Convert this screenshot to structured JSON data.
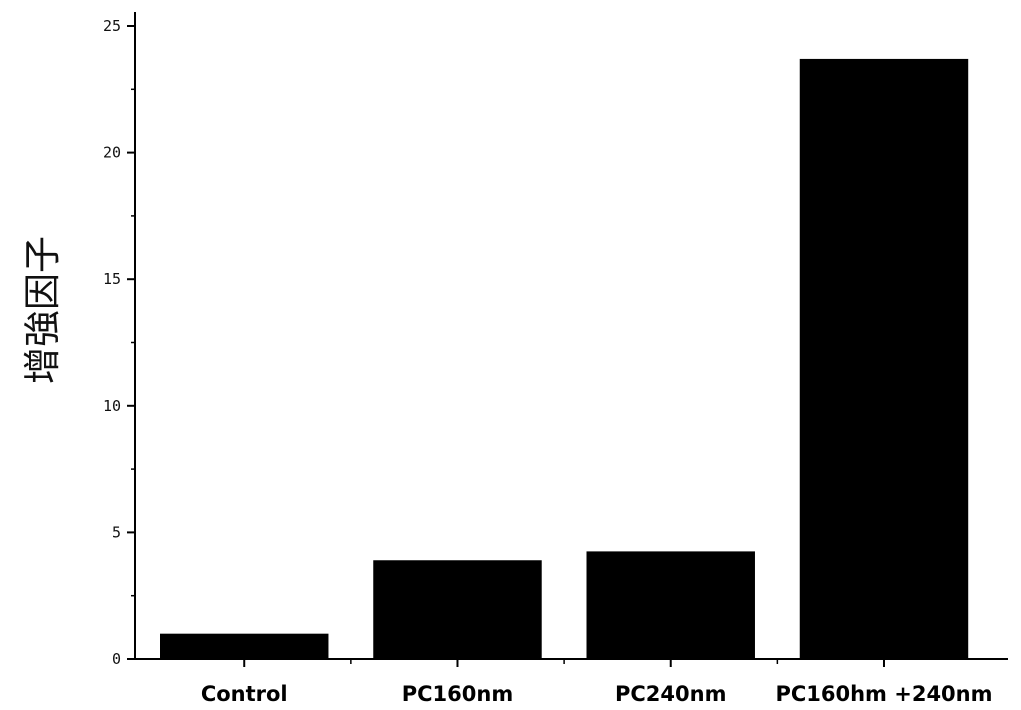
{
  "chart_data": {
    "type": "bar",
    "title": "",
    "xlabel": "",
    "ylabel": "增強因子",
    "categories": [
      "Control",
      "PC160nm",
      "PC240nm",
      "PC160hm +240nm"
    ],
    "values": [
      1.0,
      3.9,
      4.25,
      23.7
    ],
    "ylim": [
      0,
      25
    ],
    "yticks": [
      0,
      5,
      10,
      15,
      20,
      25
    ],
    "ytick_labels": [
      "0",
      "5",
      "10",
      "15",
      "20",
      "25"
    ],
    "grid": false,
    "legend": "none",
    "bar_color": "#000000",
    "axis_color": "#000000"
  }
}
